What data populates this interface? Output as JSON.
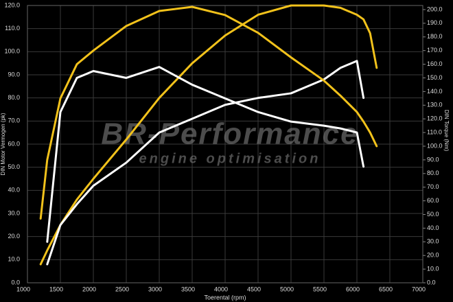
{
  "chart_data": {
    "type": "line",
    "xlabel": "Toerental (rpm)",
    "ylabel": "DIN Motor Vermogen (pk)",
    "y2label": "DIN Torque (Nm)",
    "annotations": [
      "BR-Performance",
      "engine optimisation"
    ],
    "x": [
      1200,
      1300,
      1500,
      1750,
      2000,
      2500,
      3000,
      3500,
      4000,
      4500,
      5000,
      5500,
      5750,
      6000,
      6100,
      6200,
      6300
    ],
    "series": [
      {
        "color": "#f2c21b",
        "values": [
          8,
          14,
          25,
          36,
          45,
          62,
          80,
          95,
          107,
          116,
          120,
          120,
          119,
          116,
          114,
          108,
          93
        ]
      },
      {
        "color": "#ffffff",
        "values": [
          null,
          8,
          25,
          34,
          42,
          52,
          65,
          71,
          77,
          80,
          82,
          88,
          93,
          96,
          80,
          null,
          null
        ]
      },
      {
        "color": "#f2c21b",
        "axis": "y2",
        "values": [
          47,
          90,
          135,
          160,
          170,
          188,
          199,
          202,
          196,
          183,
          165,
          148,
          137,
          125,
          118,
          110,
          100
        ]
      },
      {
        "color": "#ffffff",
        "axis": "y2",
        "values": [
          null,
          30,
          125,
          150,
          155,
          150,
          158,
          145,
          135,
          125,
          118,
          115,
          113,
          110,
          85,
          null,
          null
        ]
      }
    ],
    "xlim": [
      1000,
      7000
    ],
    "xticks": [
      1000,
      1500,
      2000,
      2500,
      3000,
      3500,
      4000,
      4500,
      5000,
      5500,
      6000,
      6500,
      7000
    ],
    "ylim": [
      0,
      120
    ],
    "yticks": [
      {
        "value": 0,
        "label": "0.0"
      },
      {
        "value": 10,
        "label": "10.0"
      },
      {
        "value": 20,
        "label": "20.0"
      },
      {
        "value": 30,
        "label": "30.0"
      },
      {
        "value": 40,
        "label": "40.0"
      },
      {
        "value": 50,
        "label": "50.0"
      },
      {
        "value": 60,
        "label": "60.0"
      },
      {
        "value": 70,
        "label": "70.0"
      },
      {
        "value": 80,
        "label": "80.0"
      },
      {
        "value": 90,
        "label": "90.0"
      },
      {
        "value": 100,
        "label": "100.0"
      },
      {
        "value": 110,
        "label": "110.0"
      },
      {
        "value": 120,
        "label": "120.0"
      }
    ],
    "y2lim": [
      0,
      203
    ],
    "y2ticks": [
      {
        "value": 0,
        "label": "0.0"
      },
      {
        "value": 10,
        "label": "10.0"
      },
      {
        "value": 20,
        "label": "20.0"
      },
      {
        "value": 30,
        "label": "30.0"
      },
      {
        "value": 40,
        "label": "40.0"
      },
      {
        "value": 50,
        "label": "50.0"
      },
      {
        "value": 60,
        "label": "60.0"
      },
      {
        "value": 70,
        "label": "70.0"
      },
      {
        "value": 80,
        "label": "80.0"
      },
      {
        "value": 90,
        "label": "90.0"
      },
      {
        "value": 100,
        "label": "100.0"
      },
      {
        "value": 110,
        "label": "110.0"
      },
      {
        "value": 120,
        "label": "120.0"
      },
      {
        "value": 130,
        "label": "130.0"
      },
      {
        "value": 140,
        "label": "140.0"
      },
      {
        "value": 150,
        "label": "150.0"
      },
      {
        "value": 160,
        "label": "160.0"
      },
      {
        "value": 170,
        "label": "170.0"
      },
      {
        "value": 180,
        "label": "180.0"
      },
      {
        "value": 190,
        "label": "190.0"
      },
      {
        "value": 200,
        "label": "200.0"
      }
    ],
    "grid": true
  }
}
